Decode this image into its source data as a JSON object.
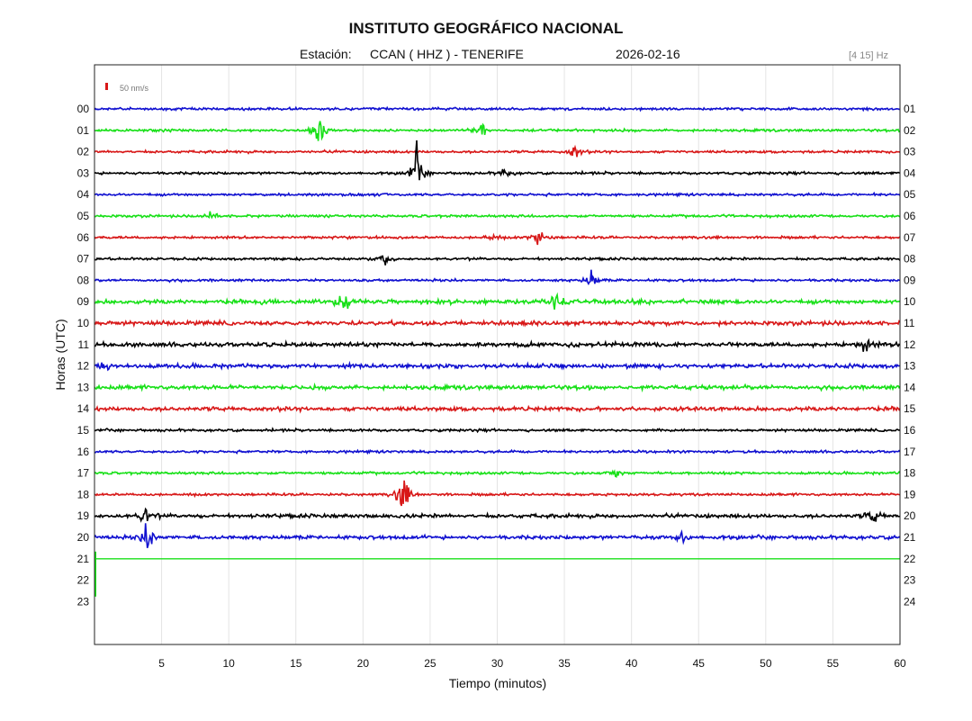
{
  "header": {
    "title": "INSTITUTO GEOGRÁFICO NACIONAL",
    "station_prefix": "Estación:",
    "station": "CCAN ( HHZ ) - TENERIFE",
    "date": "2026-02-16",
    "band": "[4 15] Hz"
  },
  "chart_data": {
    "type": "line",
    "xlabel": "Tiempo (minutos)",
    "ylabel": "Horas (UTC)",
    "xlim": [
      0,
      60
    ],
    "x_ticks": [
      5,
      10,
      15,
      20,
      25,
      30,
      35,
      40,
      45,
      50,
      55,
      60
    ],
    "left_hour_labels": [
      "00",
      "01",
      "02",
      "03",
      "04",
      "05",
      "06",
      "07",
      "08",
      "09",
      "10",
      "11",
      "12",
      "13",
      "14",
      "15",
      "16",
      "17",
      "18",
      "19",
      "20",
      "21",
      "22",
      "23"
    ],
    "right_hour_labels": [
      "01",
      "02",
      "03",
      "04",
      "05",
      "06",
      "07",
      "08",
      "09",
      "10",
      "11",
      "12",
      "13",
      "14",
      "15",
      "16",
      "17",
      "18",
      "19",
      "20",
      "21",
      "22",
      "23",
      "24"
    ],
    "scale_label": "50 nm/s",
    "trace_colors": [
      "#1010d0",
      "#18e018",
      "#d81818",
      "#000000"
    ],
    "grid": true,
    "recorded_hours": 21,
    "events": [
      {
        "hour": 1,
        "minute": 16.7,
        "amp": 1.0
      },
      {
        "hour": 1,
        "minute": 28.9,
        "amp": 0.35
      },
      {
        "hour": 2,
        "minute": 35.8,
        "amp": 0.4
      },
      {
        "hour": 3,
        "minute": 24.0,
        "amp": 1.0
      },
      {
        "hour": 3,
        "minute": 30.6,
        "amp": 0.25
      },
      {
        "hour": 5,
        "minute": 8.6,
        "amp": 0.2
      },
      {
        "hour": 6,
        "minute": 33.1,
        "amp": 0.45
      },
      {
        "hour": 6,
        "minute": 29.5,
        "amp": 0.2
      },
      {
        "hour": 7,
        "minute": 21.5,
        "amp": 0.35
      },
      {
        "hour": 8,
        "minute": 37.0,
        "amp": 0.45
      },
      {
        "hour": 9,
        "minute": 18.6,
        "amp": 0.55
      },
      {
        "hour": 9,
        "minute": 34.4,
        "amp": 0.7
      },
      {
        "hour": 11,
        "minute": 57.4,
        "amp": 0.4
      },
      {
        "hour": 12,
        "minute": 0.8,
        "amp": 0.3
      },
      {
        "hour": 17,
        "minute": 38.8,
        "amp": 0.2
      },
      {
        "hour": 18,
        "minute": 23.0,
        "amp": 1.0
      },
      {
        "hour": 19,
        "minute": 3.8,
        "amp": 0.45
      },
      {
        "hour": 19,
        "minute": 58.0,
        "amp": 0.4
      },
      {
        "hour": 20,
        "minute": 4.0,
        "amp": 0.8
      },
      {
        "hour": 20,
        "minute": 43.8,
        "amp": 0.3
      }
    ]
  }
}
